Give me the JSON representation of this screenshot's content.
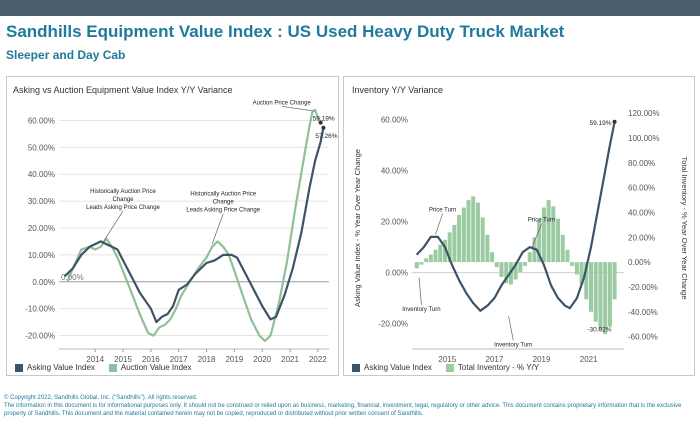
{
  "header": {
    "title": "Sandhills Equipment Value Index : US Used Heavy Duty Truck Market",
    "subtitle": "Sleeper and Day Cab"
  },
  "left": {
    "panel_title": "Asking vs Auction Equipment Value Index Y/Y Variance"
  },
  "right": {
    "panel_title": "Inventory Y/Y Variance"
  },
  "footer": {
    "line1": "© Copyright 2022, Sandhills Global, Inc. (\"Sandhills\"). All rights reserved.",
    "line2": "The information in this document is for informational purposes only.  It should not be construed or relied upon as business, marketing, financial, investment, legal, regulatory or other advice. This document contains proprietary information that is the exclusive property of Sandhills. This document and the material contained herein may not be copied, reproduced or distributed without prior written consent of Sandhills."
  },
  "colors": {
    "asking": "#3e5366",
    "auction": "#8fc09a",
    "inventory": "#9ccaa3",
    "title": "#1f7a9c"
  },
  "chart_data": [
    {
      "type": "line",
      "ylim": [
        -25,
        65
      ],
      "xlim": [
        2012.7,
        2022.4
      ],
      "y_ticks": [
        -20,
        -10,
        0,
        10,
        20,
        30,
        40,
        50,
        60
      ],
      "y_tick_labels": [
        "-20.00%",
        "-10.00%",
        "0.00%",
        "10.00%",
        "20.00%",
        "30.00%",
        "40.00%",
        "50.00%",
        "60.00%"
      ],
      "x_ticks": [
        2014,
        2015,
        2016,
        2017,
        2018,
        2019,
        2020,
        2021,
        2022
      ],
      "x_tick_labels": [
        "2014",
        "2015",
        "2016",
        "2017",
        "2018",
        "2019",
        "2020",
        "2021",
        "2022"
      ],
      "grid": true,
      "legend_position": "bottom",
      "zero_label": "0.00%",
      "series": [
        {
          "name": "Asking Value Index",
          "points": [
            [
              2012.9,
              2
            ],
            [
              2013.2,
              5
            ],
            [
              2013.5,
              10
            ],
            [
              2013.8,
              13
            ],
            [
              2014.0,
              14
            ],
            [
              2014.2,
              15
            ],
            [
              2014.4,
              14
            ],
            [
              2014.6,
              13
            ],
            [
              2014.8,
              12
            ],
            [
              2015.0,
              8
            ],
            [
              2015.3,
              2
            ],
            [
              2015.6,
              -4
            ],
            [
              2016.0,
              -10
            ],
            [
              2016.2,
              -15
            ],
            [
              2016.4,
              -13
            ],
            [
              2016.6,
              -12
            ],
            [
              2016.8,
              -9
            ],
            [
              2017.0,
              -3
            ],
            [
              2017.3,
              -1
            ],
            [
              2017.6,
              3
            ],
            [
              2018.0,
              7
            ],
            [
              2018.3,
              8
            ],
            [
              2018.6,
              10
            ],
            [
              2018.9,
              10
            ],
            [
              2019.1,
              9
            ],
            [
              2019.4,
              3
            ],
            [
              2019.7,
              -3
            ],
            [
              2020.0,
              -9
            ],
            [
              2020.3,
              -14
            ],
            [
              2020.5,
              -13
            ],
            [
              2020.8,
              -5
            ],
            [
              2021.1,
              5
            ],
            [
              2021.4,
              18
            ],
            [
              2021.7,
              35
            ],
            [
              2021.9,
              45
            ],
            [
              2022.1,
              52
            ],
            [
              2022.2,
              57.26
            ]
          ]
        },
        {
          "name": "Auction Value Index",
          "points": [
            [
              2013.0,
              0
            ],
            [
              2013.2,
              5
            ],
            [
              2013.5,
              12
            ],
            [
              2013.8,
              13
            ],
            [
              2014.0,
              12
            ],
            [
              2014.2,
              13
            ],
            [
              2014.4,
              16
            ],
            [
              2014.6,
              13
            ],
            [
              2014.8,
              9
            ],
            [
              2015.0,
              4
            ],
            [
              2015.3,
              -4
            ],
            [
              2015.6,
              -12
            ],
            [
              2015.9,
              -19
            ],
            [
              2016.1,
              -20
            ],
            [
              2016.3,
              -17
            ],
            [
              2016.5,
              -16
            ],
            [
              2016.7,
              -14
            ],
            [
              2016.9,
              -10
            ],
            [
              2017.1,
              -5
            ],
            [
              2017.4,
              0
            ],
            [
              2017.7,
              5
            ],
            [
              2018.0,
              9
            ],
            [
              2018.2,
              13
            ],
            [
              2018.4,
              15
            ],
            [
              2018.6,
              13
            ],
            [
              2018.8,
              10
            ],
            [
              2019.0,
              4
            ],
            [
              2019.3,
              -5
            ],
            [
              2019.6,
              -14
            ],
            [
              2019.9,
              -20
            ],
            [
              2020.1,
              -22
            ],
            [
              2020.3,
              -20
            ],
            [
              2020.6,
              -8
            ],
            [
              2020.9,
              8
            ],
            [
              2021.2,
              28
            ],
            [
              2021.5,
              46
            ],
            [
              2021.7,
              58
            ],
            [
              2021.8,
              63
            ],
            [
              2021.9,
              64
            ],
            [
              2022.0,
              61
            ],
            [
              2022.1,
              59.19
            ]
          ]
        }
      ],
      "annotations": [
        {
          "lines": [
            "Historically Auction Price",
            "Change",
            "Leads Asking Price Change"
          ],
          "x": 2015.0,
          "y": 33,
          "arrow_to": [
            2014.3,
            15
          ]
        },
        {
          "lines": [
            "Historically Auction Price",
            "Change",
            "Leads Asking Price Change"
          ],
          "x": 2018.6,
          "y": 32,
          "arrow_to": [
            2018.2,
            14
          ]
        },
        {
          "lines": [
            "Auction Price Change"
          ],
          "x": 2020.7,
          "y": 66,
          "arrow_to": [
            2021.85,
            63.5
          ]
        }
      ],
      "end_labels": [
        {
          "text": "59.19%",
          "x": 2022.1,
          "y": 59.19
        },
        {
          "text": "57.26%",
          "x": 2022.2,
          "y": 57.26
        }
      ]
    },
    {
      "type": "bar+line",
      "xlim": [
        2013.5,
        2022.5
      ],
      "ylim_left": [
        -30,
        65
      ],
      "ylim_right": [
        -70,
        125
      ],
      "ylabel_left": "Asking Value Index - % Year Over Year Change",
      "ylabel_right": "Total Inventory - % Year Over Year Change",
      "y_left_ticks": [
        -20,
        0,
        20,
        40,
        60
      ],
      "y_left_tick_labels": [
        "-20.00%",
        "0.00%",
        "20.00%",
        "40.00%",
        "60.00%"
      ],
      "y_right_ticks": [
        -60,
        -40,
        -20,
        0,
        20,
        40,
        60,
        80,
        100,
        120
      ],
      "y_right_tick_labels": [
        "-60.00%",
        "-40.00%",
        "-20.00%",
        "0.00%",
        "20.00%",
        "40.00%",
        "60.00%",
        "80.00%",
        "100.00%",
        "120.00%"
      ],
      "x_ticks": [
        2015,
        2017,
        2019,
        2021
      ],
      "x_tick_labels": [
        "2015",
        "2017",
        "2019",
        "2021"
      ],
      "legend_position": "bottom",
      "line_series": {
        "name": "Asking Value Index",
        "points": [
          [
            2013.7,
            7
          ],
          [
            2014.0,
            10
          ],
          [
            2014.3,
            14
          ],
          [
            2014.6,
            14
          ],
          [
            2014.9,
            10
          ],
          [
            2015.2,
            3
          ],
          [
            2015.5,
            -3
          ],
          [
            2015.8,
            -8
          ],
          [
            2016.1,
            -12
          ],
          [
            2016.4,
            -15
          ],
          [
            2016.7,
            -13
          ],
          [
            2017.0,
            -10
          ],
          [
            2017.3,
            -5
          ],
          [
            2017.6,
            -1
          ],
          [
            2017.9,
            3
          ],
          [
            2018.2,
            8
          ],
          [
            2018.5,
            10
          ],
          [
            2018.8,
            9
          ],
          [
            2019.1,
            3
          ],
          [
            2019.4,
            -5
          ],
          [
            2019.7,
            -10
          ],
          [
            2020.0,
            -13
          ],
          [
            2020.2,
            -14
          ],
          [
            2020.5,
            -10
          ],
          [
            2020.8,
            -2
          ],
          [
            2021.1,
            10
          ],
          [
            2021.4,
            25
          ],
          [
            2021.7,
            40
          ],
          [
            2021.9,
            50
          ],
          [
            2022.1,
            59.19
          ]
        ]
      },
      "bar_series": {
        "name": "Total Inventory - % Y/Y",
        "points": [
          [
            2013.7,
            -5
          ],
          [
            2013.9,
            -2
          ],
          [
            2014.1,
            3
          ],
          [
            2014.3,
            6
          ],
          [
            2014.5,
            10
          ],
          [
            2014.7,
            14
          ],
          [
            2014.9,
            18
          ],
          [
            2015.1,
            24
          ],
          [
            2015.3,
            30
          ],
          [
            2015.5,
            38
          ],
          [
            2015.7,
            44
          ],
          [
            2015.9,
            50
          ],
          [
            2016.1,
            53
          ],
          [
            2016.3,
            48
          ],
          [
            2016.5,
            36
          ],
          [
            2016.7,
            22
          ],
          [
            2016.9,
            8
          ],
          [
            2017.1,
            -4
          ],
          [
            2017.3,
            -12
          ],
          [
            2017.5,
            -17
          ],
          [
            2017.7,
            -18
          ],
          [
            2017.9,
            -14
          ],
          [
            2018.1,
            -8
          ],
          [
            2018.3,
            -3
          ],
          [
            2018.5,
            8
          ],
          [
            2018.7,
            20
          ],
          [
            2018.9,
            34
          ],
          [
            2019.1,
            44
          ],
          [
            2019.3,
            50
          ],
          [
            2019.5,
            45
          ],
          [
            2019.7,
            35
          ],
          [
            2019.9,
            22
          ],
          [
            2020.1,
            10
          ],
          [
            2020.3,
            -3
          ],
          [
            2020.5,
            -10
          ],
          [
            2020.7,
            -18
          ],
          [
            2020.9,
            -30
          ],
          [
            2021.1,
            -40
          ],
          [
            2021.3,
            -48
          ],
          [
            2021.5,
            -55
          ],
          [
            2021.7,
            -58
          ],
          [
            2021.9,
            -52
          ],
          [
            2022.1,
            -30.02
          ]
        ]
      },
      "annotations": [
        {
          "text": "Price Turn",
          "x": 2014.8,
          "y_left": 24,
          "arrow_to": [
            2014.5,
            15
          ]
        },
        {
          "text": "Inventory Turn",
          "x": 2013.9,
          "y_left": -15,
          "arrow_to": [
            2013.8,
            -2
          ]
        },
        {
          "text": "Inventory Turn",
          "x": 2017.8,
          "y_left": -29,
          "arrow_to": [
            2017.6,
            -17
          ]
        },
        {
          "text": "Price Turn",
          "x": 2019.0,
          "y_left": 20,
          "arrow_to": [
            2018.6,
            10
          ]
        },
        {
          "text": "Inventory Turn",
          "x": 2020.8,
          "y_left": -49,
          "arrow_to": [
            2021.6,
            -40
          ]
        }
      ],
      "end_labels": [
        {
          "text": "59.19%",
          "x": 2022.1,
          "y_left": 59.19
        },
        {
          "text": "-30.02%",
          "x": 2022.1,
          "y_left": -22
        }
      ]
    }
  ]
}
